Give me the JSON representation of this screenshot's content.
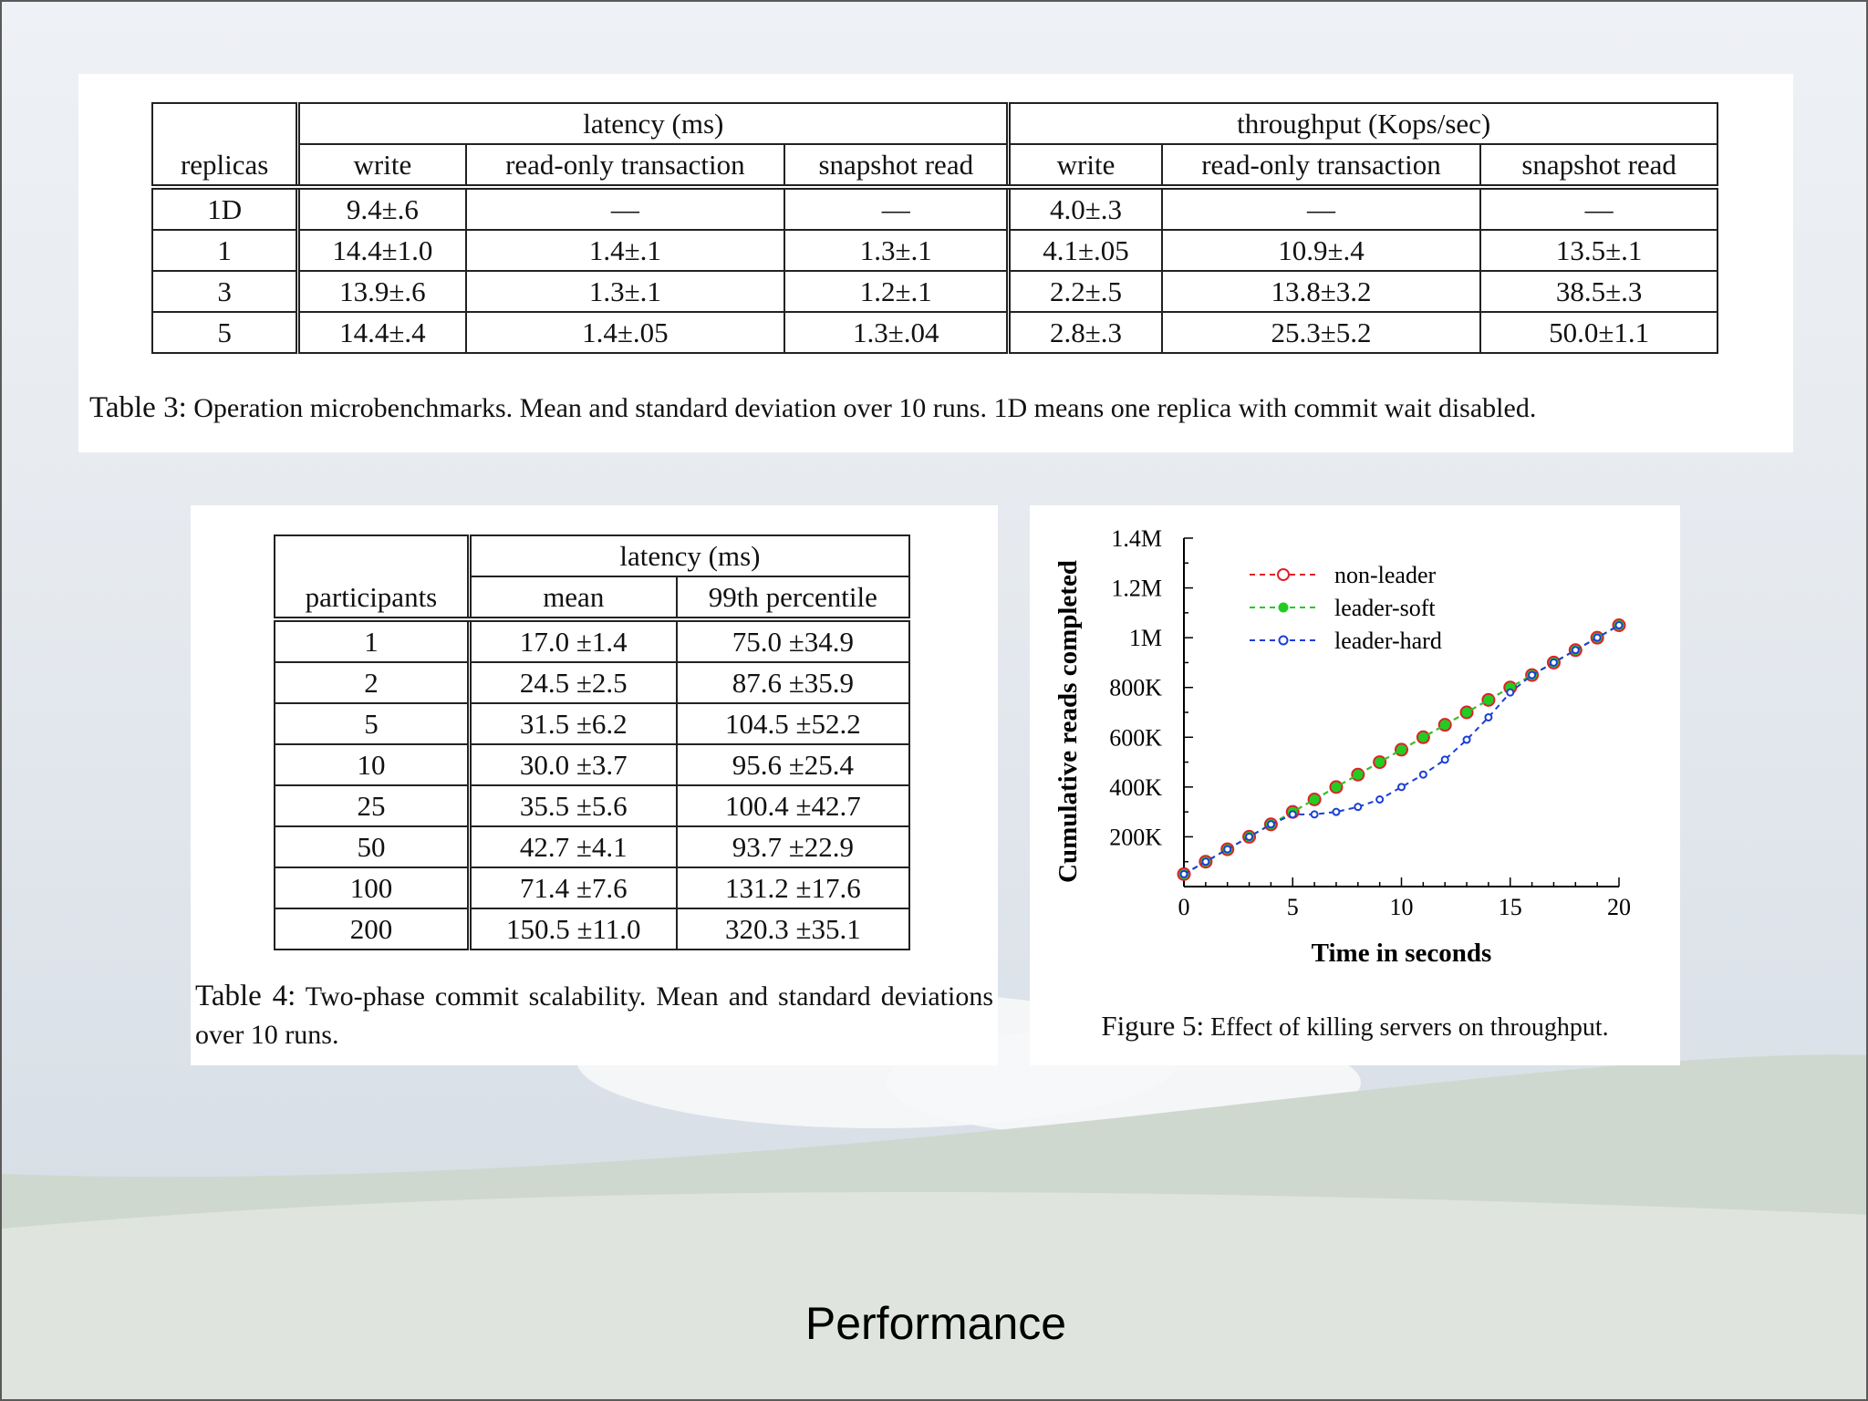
{
  "slide_title": "Performance",
  "table3": {
    "group_headers": [
      "latency (ms)",
      "throughput (Kops/sec)"
    ],
    "row_header": "replicas",
    "columns": [
      "write",
      "read-only transaction",
      "snapshot read",
      "write",
      "read-only transaction",
      "snapshot read"
    ],
    "rows": [
      [
        "1D",
        "9.4±.6",
        "—",
        "—",
        "4.0±.3",
        "—",
        "—"
      ],
      [
        "1",
        "14.4±1.0",
        "1.4±.1",
        "1.3±.1",
        "4.1±.05",
        "10.9±.4",
        "13.5±.1"
      ],
      [
        "3",
        "13.9±.6",
        "1.3±.1",
        "1.2±.1",
        "2.2±.5",
        "13.8±3.2",
        "38.5±.3"
      ],
      [
        "5",
        "14.4±.4",
        "1.4±.05",
        "1.3±.04",
        "2.8±.3",
        "25.3±5.2",
        "50.0±1.1"
      ]
    ],
    "caption_label": "Table 3:",
    "caption_text": "Operation microbenchmarks. Mean and standard deviation over 10 runs. 1D means one replica with commit wait disabled."
  },
  "table4": {
    "group_header": "latency (ms)",
    "row_header": "participants",
    "columns": [
      "mean",
      "99th percentile"
    ],
    "rows": [
      [
        "1",
        "17.0 ±1.4",
        "75.0 ±34.9"
      ],
      [
        "2",
        "24.5 ±2.5",
        "87.6 ±35.9"
      ],
      [
        "5",
        "31.5 ±6.2",
        "104.5 ±52.2"
      ],
      [
        "10",
        "30.0 ±3.7",
        "95.6 ±25.4"
      ],
      [
        "25",
        "35.5 ±5.6",
        "100.4 ±42.7"
      ],
      [
        "50",
        "42.7 ±4.1",
        "93.7 ±22.9"
      ],
      [
        "100",
        "71.4 ±7.6",
        "131.2 ±17.6"
      ],
      [
        "200",
        "150.5 ±11.0",
        "320.3 ±35.1"
      ]
    ],
    "caption_label": "Table 4:",
    "caption_text": "Two-phase commit scalability. Mean and standard deviations over 10 runs."
  },
  "chart_data": {
    "type": "line",
    "title": "",
    "xlabel": "Time in seconds",
    "ylabel": "Cumulative reads completed",
    "xlim": [
      0,
      20
    ],
    "ylim": [
      0,
      1400000
    ],
    "x_ticks": [
      0,
      5,
      10,
      15,
      20
    ],
    "y_ticks": [
      200000,
      400000,
      600000,
      800000,
      1000000,
      1200000,
      1400000
    ],
    "y_tick_labels": [
      "200K",
      "400K",
      "600K",
      "800K",
      "1M",
      "1.2M",
      "1.4M"
    ],
    "legend_position": "top-left",
    "x": [
      0,
      1,
      2,
      3,
      4,
      5,
      6,
      7,
      8,
      9,
      10,
      11,
      12,
      13,
      14,
      15,
      16,
      17,
      18,
      19,
      20
    ],
    "series": [
      {
        "name": "non-leader",
        "color": "#e0202a",
        "values": [
          50000,
          100000,
          150000,
          200000,
          250000,
          300000,
          350000,
          400000,
          450000,
          500000,
          550000,
          600000,
          650000,
          700000,
          750000,
          800000,
          850000,
          900000,
          950000,
          1000000,
          1050000
        ]
      },
      {
        "name": "leader-soft",
        "color": "#22cc22",
        "values": [
          50000,
          100000,
          150000,
          200000,
          250000,
          300000,
          350000,
          400000,
          450000,
          500000,
          550000,
          600000,
          650000,
          700000,
          750000,
          800000,
          850000,
          900000,
          950000,
          1000000,
          1050000
        ]
      },
      {
        "name": "leader-hard",
        "color": "#1a3fd6",
        "values": [
          50000,
          100000,
          150000,
          200000,
          250000,
          290000,
          290000,
          300000,
          320000,
          350000,
          400000,
          450000,
          510000,
          590000,
          680000,
          780000,
          850000,
          900000,
          950000,
          1000000,
          1050000
        ]
      }
    ],
    "caption_label": "Figure 5:",
    "caption_text": "Effect of killing servers on throughput."
  }
}
